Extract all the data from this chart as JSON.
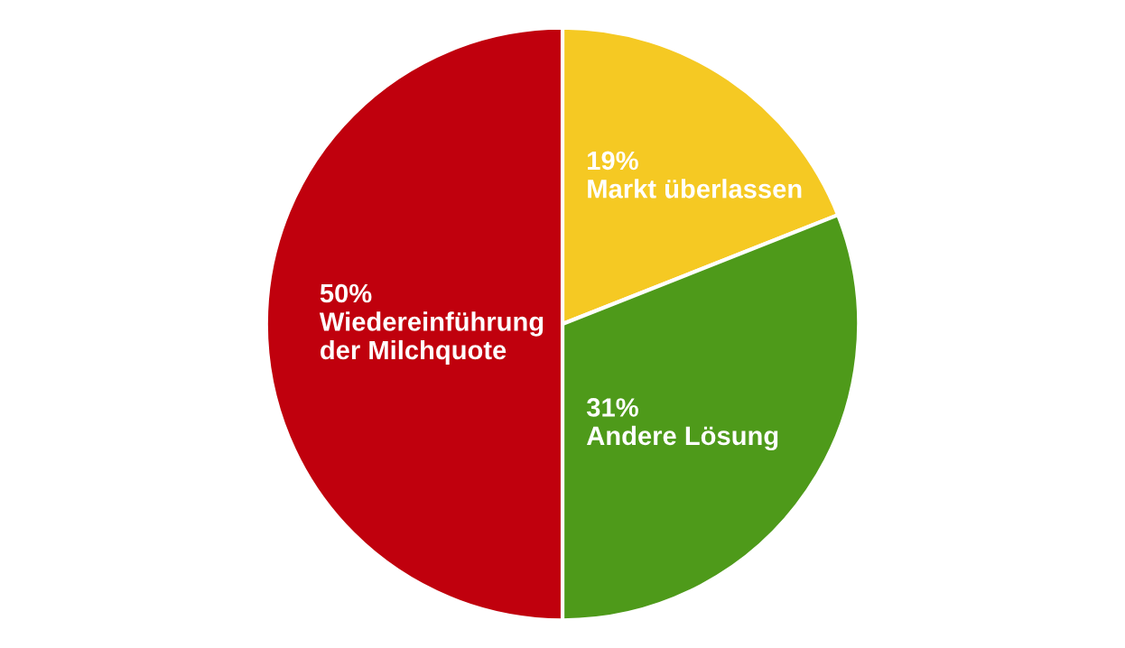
{
  "chart_data": {
    "type": "pie",
    "categories": [
      "Markt überlassen",
      "Andere Lösung",
      "Wiedereinführung der Milchquote"
    ],
    "values": [
      19,
      31,
      50
    ],
    "colors": [
      "#f5c923",
      "#4e9a1a",
      "#c0000d"
    ],
    "value_labels": [
      "19%",
      "31%",
      "50%"
    ]
  }
}
